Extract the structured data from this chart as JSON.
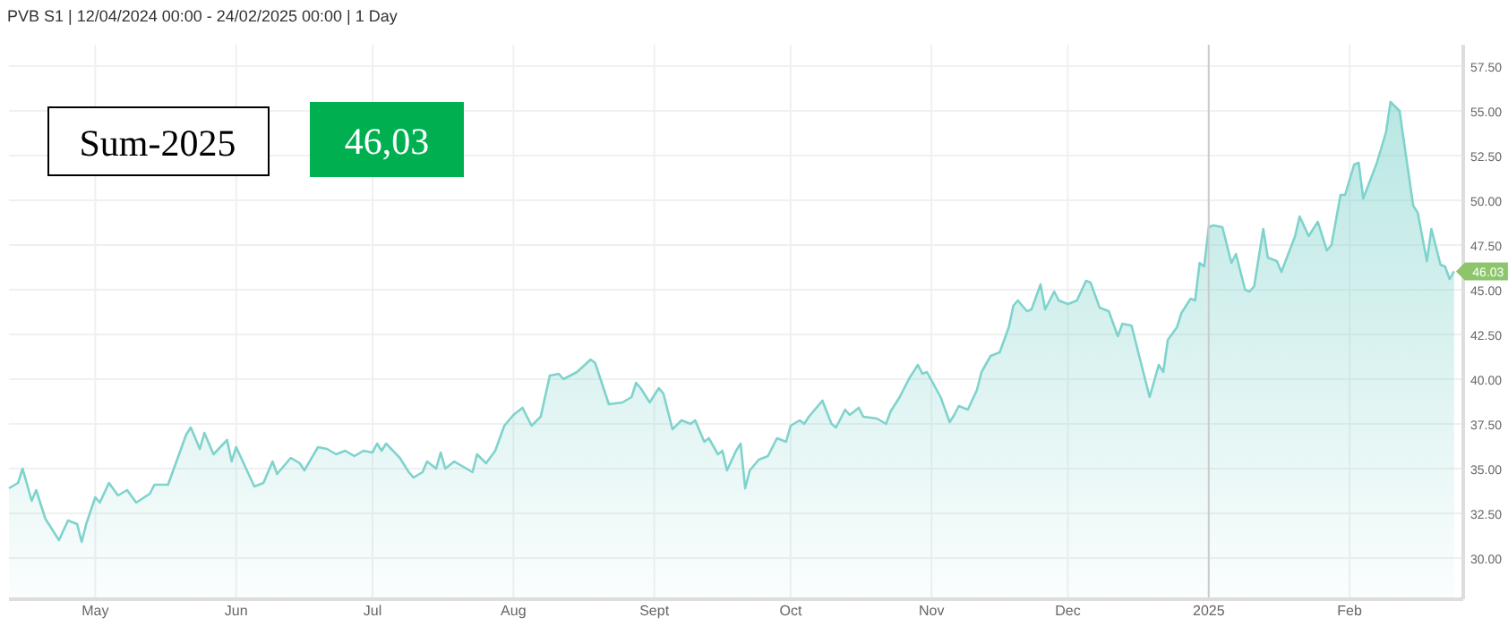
{
  "chart_data": {
    "type": "area",
    "title": "PVB S1 | 12/04/2024 00:00 - 24/02/2025 00:00 | 1 Day",
    "annotations": [
      "Sum-2025",
      "46,03",
      {
        "text": "46.03",
        "x": "2025-02-24",
        "y": 46.03
      }
    ],
    "xlim": [
      "2024-04-12",
      "2025-02-26"
    ],
    "xticks": [
      {
        "value": "2024-05-01",
        "label": "May"
      },
      {
        "value": "2024-06-01",
        "label": "Jun"
      },
      {
        "value": "2024-07-01",
        "label": "Jul"
      },
      {
        "value": "2024-08-01",
        "label": "Aug"
      },
      {
        "value": "2024-09-01",
        "label": "Sept"
      },
      {
        "value": "2024-10-01",
        "label": "Oct"
      },
      {
        "value": "2024-11-01",
        "label": "Nov"
      },
      {
        "value": "2024-12-01",
        "label": "Dec"
      },
      {
        "value": "2025-01-01",
        "label": "2025"
      },
      {
        "value": "2025-02-01",
        "label": "Feb"
      }
    ],
    "ylim": [
      27.7,
      58.7
    ],
    "yticks": [
      {
        "value": 30,
        "label": "30.00"
      },
      {
        "value": 32.5,
        "label": "32.50"
      },
      {
        "value": 35,
        "label": "35.00"
      },
      {
        "value": 37.5,
        "label": "37.50"
      },
      {
        "value": 40,
        "label": "40.00"
      },
      {
        "value": 42.5,
        "label": "42.50"
      },
      {
        "value": 45,
        "label": "45.00"
      },
      {
        "value": 47.5,
        "label": "47.50"
      },
      {
        "value": 50,
        "label": "50.00"
      },
      {
        "value": 52.5,
        "label": "52.50"
      },
      {
        "value": 55,
        "label": "55.00"
      },
      {
        "value": 57.5,
        "label": "57.50"
      }
    ],
    "grid": true,
    "ref_lines": [
      {
        "axis": "x",
        "value": "2025-01-01",
        "color": "#cccccc"
      }
    ],
    "x": [
      "2024-04-12",
      "2024-04-14",
      "2024-04-15",
      "2024-04-17",
      "2024-04-18",
      "2024-04-20",
      "2024-04-23",
      "2024-04-25",
      "2024-04-27",
      "2024-04-28",
      "2024-04-29",
      "2024-05-01",
      "2024-05-02",
      "2024-05-04",
      "2024-05-06",
      "2024-05-08",
      "2024-05-10",
      "2024-05-13",
      "2024-05-14",
      "2024-05-17",
      "2024-05-18",
      "2024-05-21",
      "2024-05-22",
      "2024-05-24",
      "2024-05-25",
      "2024-05-27",
      "2024-05-30",
      "2024-05-31",
      "2024-06-01",
      "2024-06-05",
      "2024-06-07",
      "2024-06-09",
      "2024-06-10",
      "2024-06-13",
      "2024-06-15",
      "2024-06-16",
      "2024-06-19",
      "2024-06-21",
      "2024-06-23",
      "2024-06-25",
      "2024-06-27",
      "2024-06-29",
      "2024-07-01",
      "2024-07-02",
      "2024-07-03",
      "2024-07-04",
      "2024-07-07",
      "2024-07-09",
      "2024-07-10",
      "2024-07-12",
      "2024-07-13",
      "2024-07-15",
      "2024-07-16",
      "2024-07-17",
      "2024-07-19",
      "2024-07-21",
      "2024-07-23",
      "2024-07-24",
      "2024-07-26",
      "2024-07-28",
      "2024-07-30",
      "2024-08-01",
      "2024-08-03",
      "2024-08-05",
      "2024-08-07",
      "2024-08-09",
      "2024-08-11",
      "2024-08-12",
      "2024-08-15",
      "2024-08-18",
      "2024-08-19",
      "2024-08-22",
      "2024-08-25",
      "2024-08-27",
      "2024-08-28",
      "2024-08-29",
      "2024-08-31",
      "2024-09-02",
      "2024-09-03",
      "2024-09-05",
      "2024-09-07",
      "2024-09-09",
      "2024-09-10",
      "2024-09-12",
      "2024-09-13",
      "2024-09-15",
      "2024-09-16",
      "2024-09-17",
      "2024-09-19",
      "2024-09-20",
      "2024-09-21",
      "2024-09-22",
      "2024-09-24",
      "2024-09-26",
      "2024-09-27",
      "2024-09-28",
      "2024-09-30",
      "2024-10-01",
      "2024-10-03",
      "2024-10-04",
      "2024-10-05",
      "2024-10-07",
      "2024-10-08",
      "2024-10-10",
      "2024-10-11",
      "2024-10-13",
      "2024-10-14",
      "2024-10-16",
      "2024-10-17",
      "2024-10-20",
      "2024-10-22",
      "2024-10-23",
      "2024-10-25",
      "2024-10-27",
      "2024-10-29",
      "2024-10-30",
      "2024-10-31",
      "2024-11-03",
      "2024-11-05",
      "2024-11-06",
      "2024-11-07",
      "2024-11-09",
      "2024-11-11",
      "2024-11-12",
      "2024-11-14",
      "2024-11-15",
      "2024-11-16",
      "2024-11-18",
      "2024-11-19",
      "2024-11-20",
      "2024-11-22",
      "2024-11-23",
      "2024-11-25",
      "2024-11-26",
      "2024-11-28",
      "2024-11-29",
      "2024-12-01",
      "2024-12-03",
      "2024-12-05",
      "2024-12-06",
      "2024-12-08",
      "2024-12-10",
      "2024-12-12",
      "2024-12-13",
      "2024-12-15",
      "2024-12-17",
      "2024-12-19",
      "2024-12-21",
      "2024-12-22",
      "2024-12-23",
      "2024-12-25",
      "2024-12-26",
      "2024-12-28",
      "2024-12-29",
      "2024-12-30",
      "2024-12-31",
      "2025-01-01",
      "2025-01-02",
      "2025-01-04",
      "2025-01-06",
      "2025-01-07",
      "2025-01-09",
      "2025-01-10",
      "2025-01-11",
      "2025-01-13",
      "2025-01-14",
      "2025-01-16",
      "2025-01-17",
      "2025-01-20",
      "2025-01-21",
      "2025-01-23",
      "2025-01-25",
      "2025-01-27",
      "2025-01-28",
      "2025-01-30",
      "2025-01-31",
      "2025-02-02",
      "2025-02-03",
      "2025-02-04",
      "2025-02-07",
      "2025-02-09",
      "2025-02-10",
      "2025-02-12",
      "2025-02-13",
      "2025-02-15",
      "2025-02-16",
      "2025-02-18",
      "2025-02-19",
      "2025-02-21",
      "2025-02-22",
      "2025-02-23",
      "2025-02-24"
    ],
    "series": [
      {
        "color": "#7fd3cc",
        "values": [
          33.9,
          34.2,
          35.0,
          33.2,
          33.8,
          32.2,
          31.0,
          32.1,
          31.9,
          30.9,
          31.9,
          33.4,
          33.1,
          34.2,
          33.5,
          33.8,
          33.1,
          33.6,
          34.1,
          34.1,
          34.8,
          36.9,
          37.3,
          36.1,
          37.0,
          35.8,
          36.6,
          35.4,
          36.2,
          34.0,
          34.2,
          35.4,
          34.7,
          35.6,
          35.3,
          34.9,
          36.2,
          36.1,
          35.8,
          36.0,
          35.7,
          36.0,
          35.9,
          36.4,
          36.0,
          36.4,
          35.6,
          34.8,
          34.5,
          34.8,
          35.4,
          35.0,
          35.9,
          35.0,
          35.4,
          35.1,
          34.8,
          35.8,
          35.3,
          36.0,
          37.4,
          38.0,
          38.4,
          37.4,
          37.9,
          40.2,
          40.3,
          40.0,
          40.4,
          41.1,
          40.9,
          38.6,
          38.7,
          39.0,
          39.8,
          39.5,
          38.7,
          39.5,
          39.2,
          37.2,
          37.7,
          37.5,
          37.7,
          36.5,
          36.7,
          35.8,
          36.0,
          34.9,
          36.0,
          36.4,
          33.9,
          34.9,
          35.5,
          35.7,
          36.2,
          36.7,
          36.5,
          37.4,
          37.7,
          37.5,
          37.9,
          38.5,
          38.8,
          37.5,
          37.3,
          38.3,
          38.0,
          38.4,
          37.9,
          37.8,
          37.5,
          38.2,
          39.0,
          40.0,
          40.8,
          40.3,
          40.4,
          39.0,
          37.6,
          38.0,
          38.5,
          38.3,
          39.4,
          40.4,
          41.3,
          41.4,
          41.5,
          42.9,
          44.1,
          44.4,
          43.8,
          43.9,
          45.3,
          43.9,
          44.9,
          44.4,
          44.2,
          44.4,
          45.5,
          45.4,
          44.0,
          43.8,
          42.4,
          43.1,
          43.0,
          41.0,
          39.0,
          40.8,
          40.4,
          42.2,
          42.9,
          43.7,
          44.5,
          44.4,
          46.5,
          46.3,
          48.5,
          48.6,
          48.5,
          46.5,
          47.0,
          45.0,
          44.9,
          45.2,
          48.4,
          46.8,
          46.6,
          46.0,
          48.0,
          49.1,
          48.0,
          48.8,
          47.2,
          47.5,
          50.3,
          50.3,
          52.0,
          52.1,
          50.1,
          52.1,
          53.8,
          55.5,
          55.0,
          53.2,
          49.7,
          49.3,
          46.6,
          48.4,
          46.4,
          46.3,
          45.6,
          46.03
        ]
      }
    ]
  }
}
